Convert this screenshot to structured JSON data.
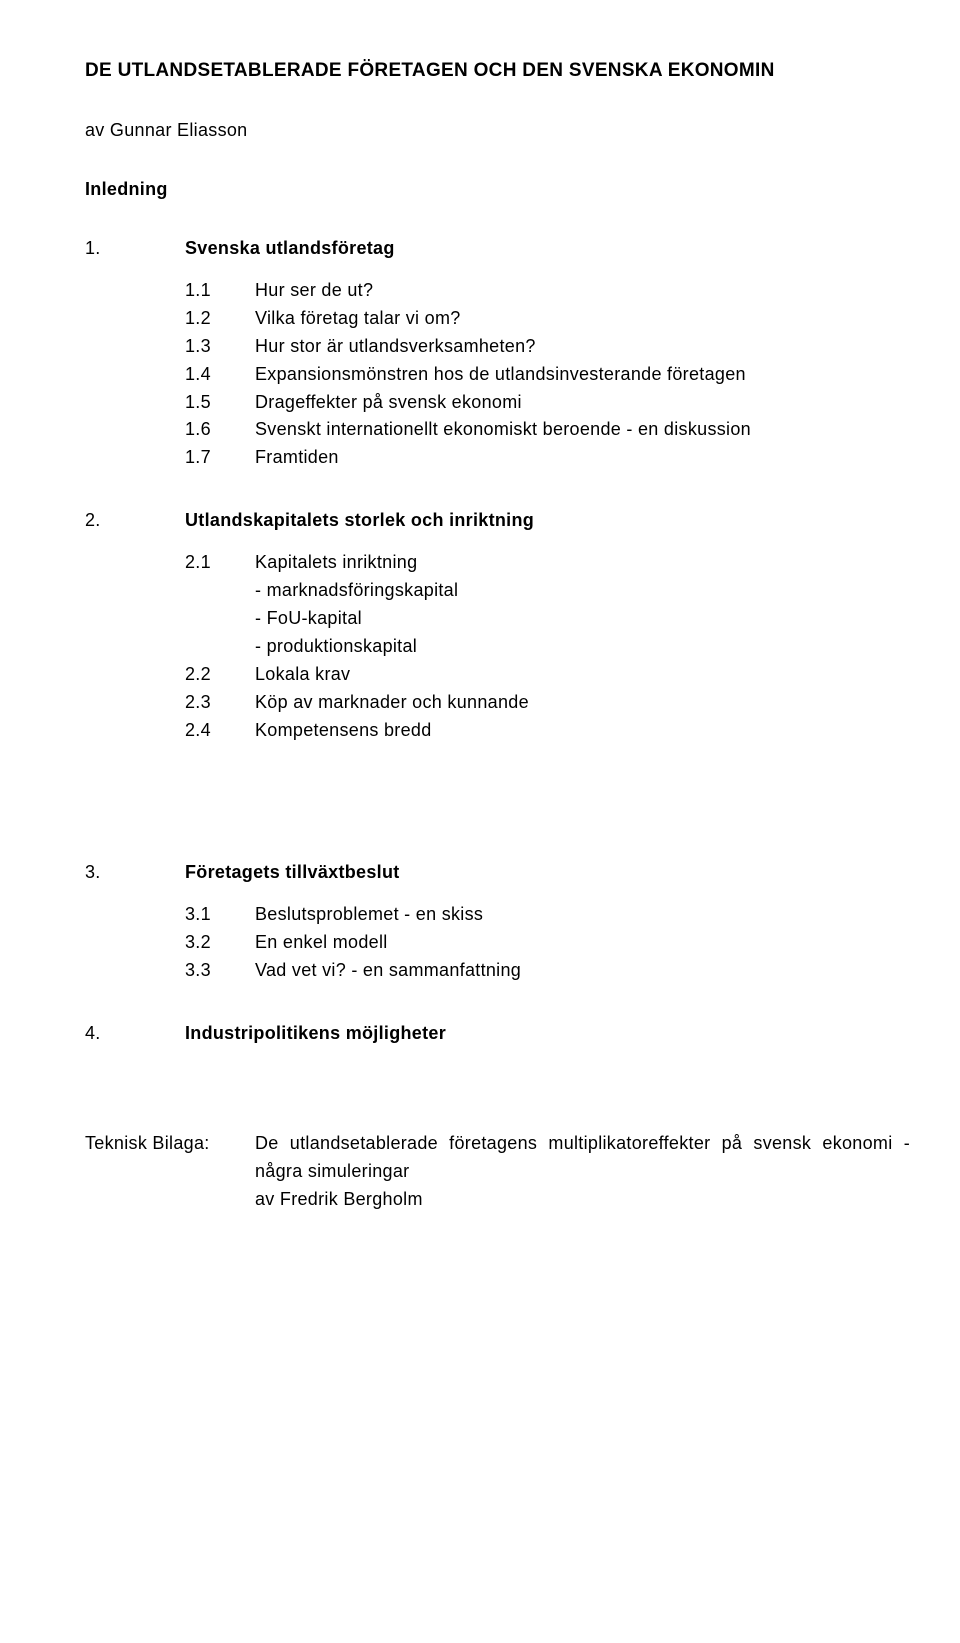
{
  "title": "DE UTLANDSETABLERADE FÖRETAGEN OCH DEN SVENSKA EKONOMIN",
  "author": "av Gunnar Eliasson",
  "intro": "Inledning",
  "sections": [
    {
      "num": "1.",
      "title": "Svenska utlandsföretag",
      "items": [
        {
          "num": "1.1",
          "text": "Hur ser de ut?"
        },
        {
          "num": "1.2",
          "text": "Vilka företag talar vi om?"
        },
        {
          "num": "1.3",
          "text": "Hur stor är utlandsverksamheten?"
        },
        {
          "num": "1.4",
          "text": "Expansionsmönstren hos de utlandsinvesterande företagen"
        },
        {
          "num": "1.5",
          "text": "Drageffekter på svensk ekonomi"
        },
        {
          "num": "1.6",
          "text": "Svenskt internationellt ekonomiskt beroende - en diskussion"
        },
        {
          "num": "1.7",
          "text": "Framtiden"
        }
      ]
    },
    {
      "num": "2.",
      "title": "Utlandskapitalets storlek och inriktning",
      "items": [
        {
          "num": "2.1",
          "text": "Kapitalets inriktning",
          "subs": [
            "- marknadsföringskapital",
            "- FoU-kapital",
            "- produktionskapital"
          ]
        },
        {
          "num": "2.2",
          "text": "Lokala krav"
        },
        {
          "num": "2.3",
          "text": "Köp av marknader och kunnande"
        },
        {
          "num": "2.4",
          "text": "Kompetensens bredd"
        }
      ]
    },
    {
      "num": "3.",
      "title": "Företagets tillväxtbeslut",
      "items": [
        {
          "num": "3.1",
          "text": "Beslutsproblemet - en skiss"
        },
        {
          "num": "3.2",
          "text": "En enkel modell"
        },
        {
          "num": "3.3",
          "text": "Vad vet vi? - en sammanfattning"
        }
      ]
    },
    {
      "num": "4.",
      "title": "Industripolitikens möjligheter",
      "items": []
    }
  ],
  "bilaga": {
    "label": "Teknisk Bilaga:",
    "line1": "De utlandsetablerade företagens multiplikatoreffekter på svensk ekonomi - några simuleringar",
    "line2": "av Fredrik Bergholm"
  }
}
